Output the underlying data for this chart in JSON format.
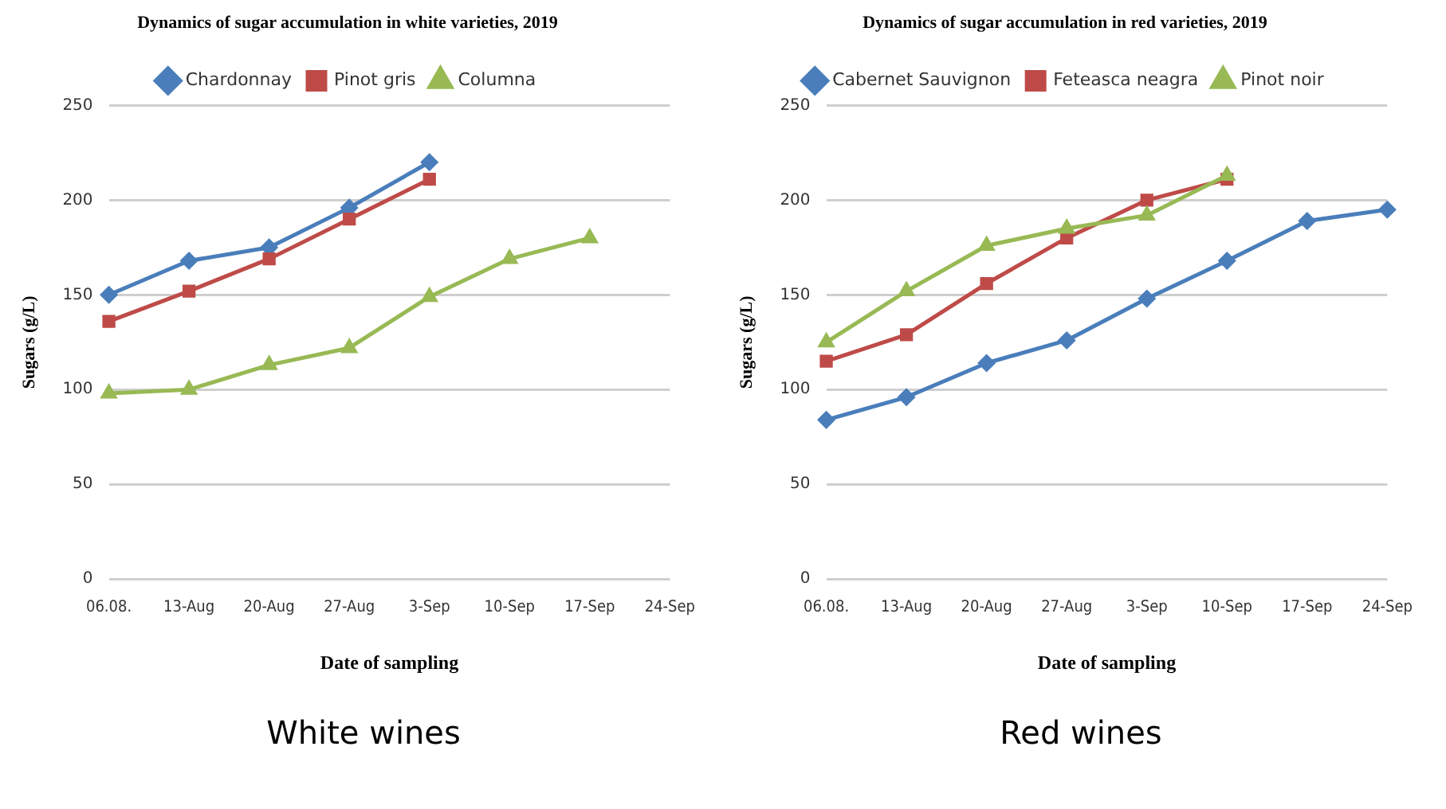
{
  "chart_data": [
    {
      "type": "line",
      "title": "Dynamics of sugar accumulation in white varieties, 2019",
      "xlabel": "Date of sampling",
      "ylabel": "Sugars (g/L)",
      "annotations": [
        "White wines"
      ],
      "categories": [
        "06.08.",
        "13-Aug",
        "20-Aug",
        "27-Aug",
        "3-Sep",
        "10-Sep",
        "17-Sep",
        "24-Sep"
      ],
      "ylim": [
        0,
        250
      ],
      "yticks": [
        0,
        50,
        100,
        150,
        200,
        250
      ],
      "grid": "y",
      "legend": "top",
      "line_style": "solid",
      "series": [
        {
          "name": "Chardonnay",
          "color": "#4a7ebb",
          "marker": "diamond",
          "values": [
            150,
            168,
            175,
            196,
            220,
            null,
            null,
            null
          ]
        },
        {
          "name": "Pinot gris",
          "color": "#be4b48",
          "marker": "square",
          "values": [
            136,
            152,
            169,
            190,
            211,
            null,
            null,
            null
          ]
        },
        {
          "name": "Columna",
          "color": "#98b954",
          "marker": "triangle",
          "values": [
            98,
            100,
            113,
            122,
            149,
            169,
            180,
            null
          ]
        }
      ]
    },
    {
      "type": "line",
      "title": "Dynamics of sugar accumulation in red varieties, 2019",
      "xlabel": "Date of sampling",
      "ylabel": "Sugars (g/L)",
      "annotations": [
        "Red wines"
      ],
      "categories": [
        "06.08.",
        "13-Aug",
        "20-Aug",
        "27-Aug",
        "3-Sep",
        "10-Sep",
        "17-Sep",
        "24-Sep"
      ],
      "ylim": [
        0,
        250
      ],
      "yticks": [
        0,
        50,
        100,
        150,
        200,
        250
      ],
      "grid": "y",
      "legend": "top",
      "line_style": "solid",
      "series": [
        {
          "name": "Cabernet Sauvignon",
          "color": "#4a7ebb",
          "marker": "diamond",
          "values": [
            84,
            96,
            114,
            126,
            148,
            168,
            189,
            195
          ]
        },
        {
          "name": "Feteasca neagra",
          "color": "#be4b48",
          "marker": "square",
          "values": [
            115,
            129,
            156,
            180,
            200,
            211,
            null,
            null
          ]
        },
        {
          "name": "Pinot noir",
          "color": "#98b954",
          "marker": "triangle",
          "values": [
            125,
            152,
            176,
            185,
            192,
            213,
            null,
            null
          ]
        }
      ]
    }
  ]
}
